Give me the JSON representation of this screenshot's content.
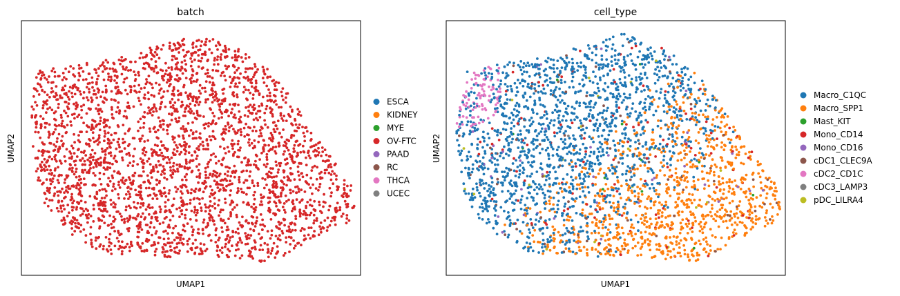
{
  "chart_data": [
    {
      "type": "scatter",
      "title": "batch",
      "xlabel": "UMAP1",
      "ylabel": "UMAP2",
      "grid": false,
      "ticks": false,
      "legend_placement": "right",
      "legend": [
        {
          "name": "ESCA",
          "color": "#1f77b4"
        },
        {
          "name": "KIDNEY",
          "color": "#ff7f0e"
        },
        {
          "name": "MYE",
          "color": "#2ca02c"
        },
        {
          "name": "OV-FTC",
          "color": "#d62728"
        },
        {
          "name": "PAAD",
          "color": "#9467bd"
        },
        {
          "name": "RC",
          "color": "#8c564b"
        },
        {
          "name": "THCA",
          "color": "#e377c2"
        },
        {
          "name": "UCEC",
          "color": "#7f7f7f"
        }
      ],
      "point_color_note": "all points OV-FTC",
      "approx_point_count": 3000
    },
    {
      "type": "scatter",
      "title": "cell_type",
      "xlabel": "UMAP1",
      "ylabel": "UMAP2",
      "grid": false,
      "ticks": false,
      "legend_placement": "right",
      "legend": [
        {
          "name": "Macro_C1QC",
          "color": "#1f77b4"
        },
        {
          "name": "Macro_SPP1",
          "color": "#ff7f0e"
        },
        {
          "name": "Mast_KIT",
          "color": "#2ca02c"
        },
        {
          "name": "Mono_CD14",
          "color": "#d62728"
        },
        {
          "name": "Mono_CD16",
          "color": "#9467bd"
        },
        {
          "name": "cDC1_CLEC9A",
          "color": "#8c564b"
        },
        {
          "name": "cDC2_CD1C",
          "color": "#e377c2"
        },
        {
          "name": "cDC3_LAMP3",
          "color": "#7f7f7f"
        },
        {
          "name": "pDC_LILRA4",
          "color": "#bcbd22"
        }
      ],
      "approx_point_count": 3000
    }
  ]
}
